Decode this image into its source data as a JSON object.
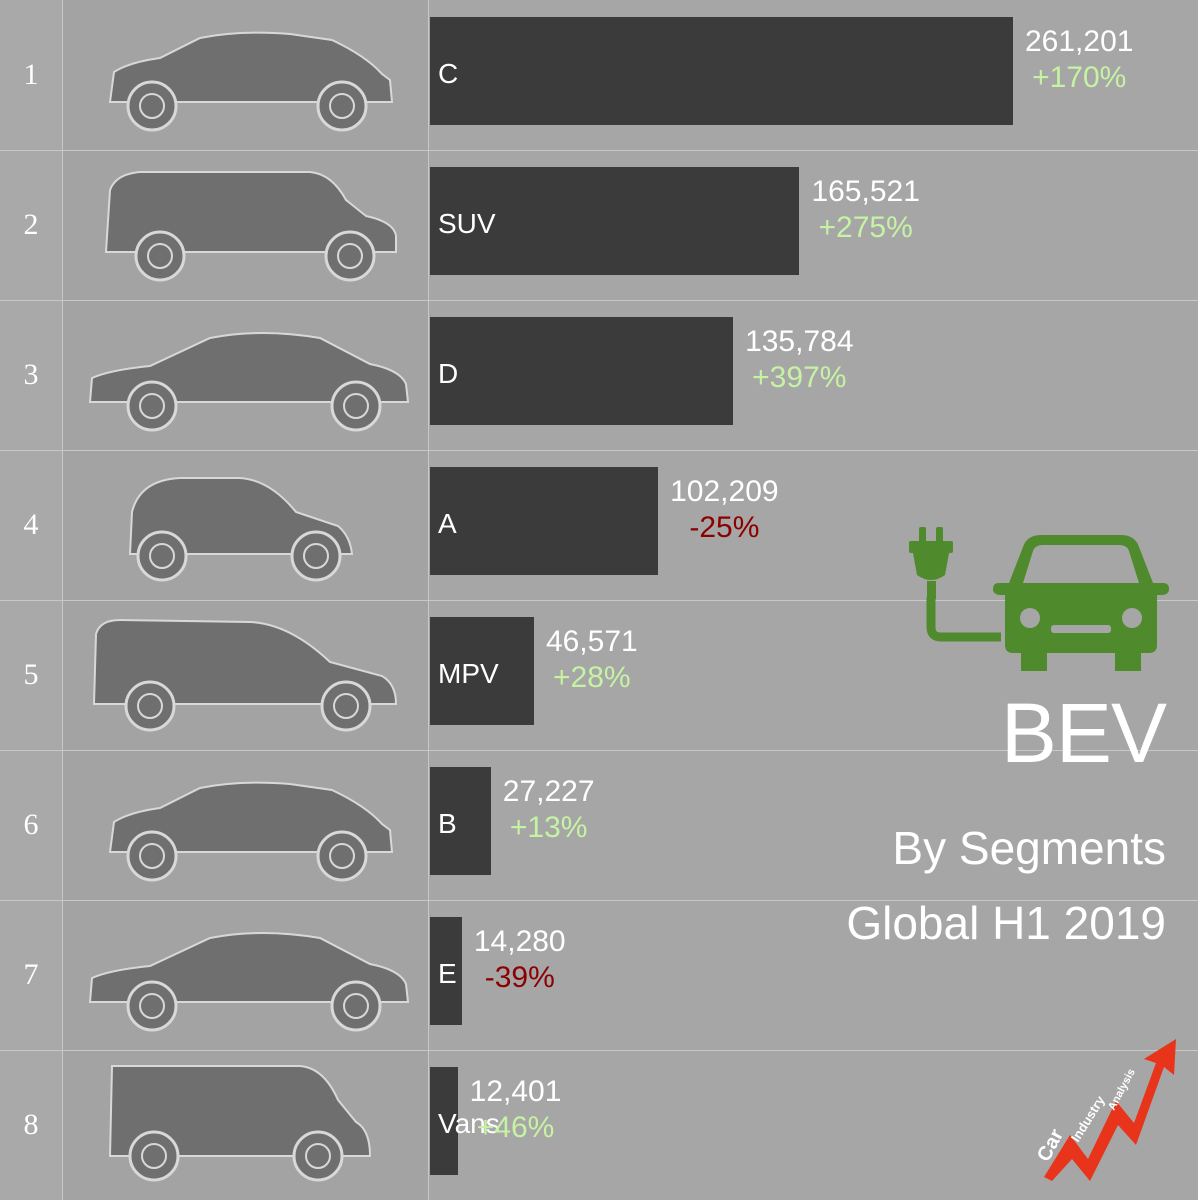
{
  "chart_data": {
    "type": "bar",
    "orientation": "horizontal",
    "title": "BEV",
    "subtitle_lines": [
      "By Segments",
      "Global H1 2019"
    ],
    "categories": [
      "C",
      "SUV",
      "D",
      "A",
      "MPV",
      "B",
      "E",
      "Vans"
    ],
    "ranks": [
      "1",
      "2",
      "3",
      "4",
      "5",
      "6",
      "7",
      "8"
    ],
    "values": [
      261201,
      165521,
      135784,
      102209,
      46571,
      27227,
      14280,
      12401
    ],
    "value_labels": [
      "261,201",
      "165,521",
      "135,784",
      "102,209",
      "46,571",
      "27,227",
      "14,280",
      "12,401"
    ],
    "growth_labels": [
      "+170%",
      "+275%",
      "+397%",
      "-25%",
      "+28%",
      "+13%",
      "-39%",
      "+46%"
    ],
    "xlim": [
      0,
      261201
    ],
    "grid": true,
    "colors": {
      "background": "#a6a6a6",
      "bar": "#3b3b3b",
      "positive": "#c6f2a4",
      "negative": "#8b0000",
      "icon_green": "#4f8a2c",
      "text": "#ffffff"
    }
  },
  "logo": {
    "icon": "electric-car-plug-icon",
    "brand_icon": "car-industry-analysis-logo",
    "brand_text": [
      "Car",
      "Industry",
      "Analysis"
    ]
  }
}
